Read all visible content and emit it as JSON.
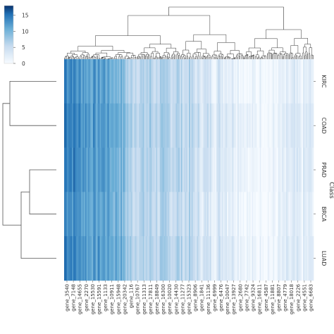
{
  "chart_data": {
    "type": "heatmap",
    "title": "",
    "xlabel": "",
    "ylabel": "Class",
    "colorbar": {
      "ticks": [
        0,
        5,
        10,
        15
      ],
      "range": [
        0,
        18
      ],
      "colors": {
        "low": "#f7fbff",
        "mid": "#6aaed6",
        "high": "#08306b"
      }
    },
    "rows": [
      "KIRC",
      "COAD",
      "PRAD",
      "BRCA",
      "LUAD"
    ],
    "column_labels": [
      "gene_3540",
      "gene_7148",
      "gene_14655",
      "gene_2270",
      "gene_15530",
      "gene_15591",
      "gene_1133",
      "gene_10911",
      "gene_15948",
      "gene_20342",
      "gene_116",
      "gene_10767",
      "gene_11313",
      "gene_17811",
      "gene_18849",
      "gene_16300",
      "gene_10020",
      "gene_14430",
      "gene_11277",
      "gene_15323",
      "gene_8906",
      "gene_1841",
      "gene_11136",
      "gene_6999",
      "gene_6476",
      "gene_10047",
      "gene_13927",
      "gene_2680",
      "gene_7742",
      "gene_9324",
      "gene_16811",
      "gene_4587",
      "gene_11881",
      "gene_8807",
      "gene_4779",
      "gene_18018",
      "gene_2226",
      "gene_4551",
      "gene_6683"
    ],
    "column_profile": [
      14.5,
      13.8,
      12.9,
      12.4,
      11.8,
      11.5,
      12.2,
      11.0,
      10.6,
      9.2,
      6.1,
      6.6,
      5.8,
      6.3,
      5.9,
      6.0,
      5.5,
      6.4,
      5.2,
      5.7,
      4.2,
      3.3,
      3.7,
      2.8,
      3.5,
      3.1,
      2.6,
      2.2,
      0.4,
      0.3,
      0.6,
      0.9,
      0.5,
      1.2,
      1.6,
      2.0,
      1.4,
      2.3,
      1.8
    ],
    "row_offsets": [
      0.0,
      0.6,
      0.3,
      -0.2,
      0.4
    ],
    "row_dendrogram_order": [
      "KIRC",
      "COAD",
      "PRAD",
      "BRCA",
      "LUAD"
    ],
    "column_clusters": 2
  }
}
